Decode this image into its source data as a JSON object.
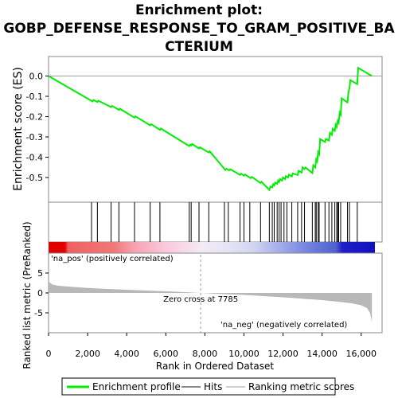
{
  "title_lines": [
    "Enrichment plot:",
    "GOBP_DEFENSE_RESPONSE_TO_GRAM_POSITIVE_BA",
    "CTERIUM"
  ],
  "legend": {
    "enrichment_profile": "Enrichment profile",
    "hits": "Hits",
    "ranking_metric_scores": "Ranking metric scores"
  },
  "colors": {
    "profile": "#00ee00",
    "hits": "#000000",
    "metric_fill": "#b8b8b8",
    "pos_label": "#cc0000",
    "neg_label": "#0000cc",
    "red": "#e00000",
    "blue": "#1010c0"
  },
  "chart_data": [
    {
      "type": "line",
      "title": "Enrichment plot: GOBP_DEFENSE_RESPONSE_TO_GRAM_POSITIVE_BACTERIUM",
      "ylabel": "Enrichment score (ES)",
      "ylim": [
        -0.6,
        0.07
      ],
      "yticks": [
        "0.0",
        "-0.1",
        "-0.2",
        "-0.3",
        "-0.4",
        "-0.5"
      ],
      "xlim": [
        0,
        16700
      ],
      "series": [
        {
          "name": "Enrichment profile",
          "x": [
            0,
            2250,
            2300,
            2500,
            2550,
            3200,
            3250,
            3600,
            3650,
            4400,
            4450,
            5200,
            5250,
            5700,
            5750,
            7200,
            7250,
            7300,
            7350,
            7700,
            7750,
            8200,
            8250,
            9050,
            9100,
            9250,
            9300,
            9800,
            9850,
            10000,
            10050,
            10350,
            10400,
            10850,
            10900,
            11300,
            11350,
            11450,
            11500,
            11550,
            11600,
            11700,
            11750,
            11800,
            11850,
            11950,
            12000,
            12100,
            12150,
            12250,
            12300,
            12450,
            12500,
            12750,
            12800,
            12950,
            13000,
            13100,
            13150,
            13500,
            13550,
            13650,
            13700,
            13750,
            13800,
            13850,
            13900,
            14150,
            14200,
            14350,
            14400,
            14500,
            14550,
            14650,
            14700,
            14750,
            14800,
            14850,
            14900,
            14950,
            15000,
            15300,
            15350,
            15400,
            15450,
            15800,
            15850,
            16550
          ],
          "y": [
            0.0,
            -0.125,
            -0.118,
            -0.128,
            -0.122,
            -0.153,
            -0.147,
            -0.167,
            -0.161,
            -0.205,
            -0.199,
            -0.243,
            -0.237,
            -0.265,
            -0.259,
            -0.345,
            -0.338,
            -0.342,
            -0.335,
            -0.357,
            -0.351,
            -0.377,
            -0.371,
            -0.463,
            -0.457,
            -0.465,
            -0.459,
            -0.487,
            -0.481,
            -0.491,
            -0.485,
            -0.503,
            -0.497,
            -0.527,
            -0.521,
            -0.561,
            -0.545,
            -0.549,
            -0.533,
            -0.539,
            -0.525,
            -0.531,
            -0.515,
            -0.522,
            -0.508,
            -0.515,
            -0.5,
            -0.508,
            -0.493,
            -0.5,
            -0.486,
            -0.495,
            -0.48,
            -0.488,
            -0.467,
            -0.476,
            -0.45,
            -0.458,
            -0.45,
            -0.478,
            -0.44,
            -0.45,
            -0.41,
            -0.42,
            -0.375,
            -0.385,
            -0.31,
            -0.325,
            -0.31,
            -0.318,
            -0.28,
            -0.29,
            -0.26,
            -0.27,
            -0.24,
            -0.25,
            -0.22,
            -0.23,
            -0.18,
            -0.19,
            -0.11,
            -0.13,
            -0.08,
            -0.06,
            -0.02,
            -0.04,
            0.04,
            0.0
          ]
        }
      ]
    },
    {
      "type": "scatter",
      "title": "Hits",
      "x": [
        2200,
        2500,
        3200,
        3600,
        4400,
        5200,
        5700,
        7200,
        7300,
        7700,
        8200,
        9000,
        9200,
        9800,
        10000,
        10300,
        10850,
        11300,
        11450,
        11550,
        11700,
        11800,
        11900,
        12050,
        12200,
        12450,
        12750,
        12950,
        13100,
        13500,
        13650,
        13700,
        13800,
        13850,
        14150,
        14350,
        14500,
        14650,
        14750,
        14800,
        14850,
        14950,
        15300,
        15400,
        15800
      ]
    },
    {
      "type": "area",
      "title": "Ranking metric scores",
      "ylabel": "Ranked list metric (PreRanked)",
      "xlabel": "Rank in Ordered Dataset",
      "xlim": [
        0,
        16700
      ],
      "ylim": [
        -7.5,
        6
      ],
      "yticks": [
        "5",
        "0",
        "-5"
      ],
      "xticks": [
        "0",
        "2,000",
        "4,000",
        "6,000",
        "8,000",
        "10,000",
        "12,000",
        "14,000",
        "16,000"
      ],
      "x": [
        0,
        60,
        200,
        500,
        1000,
        2000,
        3000,
        4000,
        5000,
        6000,
        7000,
        7785,
        9000,
        10000,
        11000,
        12000,
        13000,
        14000,
        15000,
        15500,
        16000,
        16300,
        16450,
        16550
      ],
      "y": [
        3.0,
        2.6,
        2.1,
        1.8,
        1.6,
        1.25,
        1.0,
        0.8,
        0.6,
        0.4,
        0.2,
        0.0,
        -0.3,
        -0.5,
        -0.8,
        -1.1,
        -1.45,
        -1.8,
        -2.3,
        -2.6,
        -3.1,
        -3.8,
        -5.0,
        -7.3
      ],
      "zero_cross_label": "Zero cross at 7785",
      "zero_cross_x": 7785,
      "pos_label": "'na_pos' (positively correlated)",
      "neg_label": "'na_neg' (negatively correlated)"
    }
  ]
}
